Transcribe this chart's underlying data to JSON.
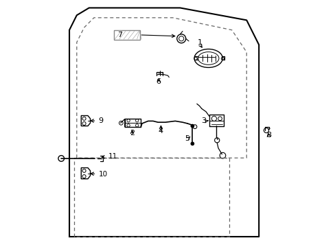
{
  "background_color": "#ffffff",
  "line_color": "#000000",
  "gray_color": "#888888",
  "dashed_color": "#666666",
  "figsize": [
    4.89,
    3.6
  ],
  "dpi": 100,
  "door_outline": {
    "x": [
      0.1,
      0.1,
      0.13,
      0.18,
      0.55,
      0.82,
      0.87,
      0.87,
      0.1
    ],
    "y": [
      0.04,
      0.88,
      0.94,
      0.97,
      0.97,
      0.92,
      0.82,
      0.04,
      0.04
    ]
  },
  "window_dashed": {
    "x": [
      0.13,
      0.13,
      0.16,
      0.2,
      0.52,
      0.76,
      0.82,
      0.82,
      0.13
    ],
    "y": [
      0.36,
      0.83,
      0.89,
      0.93,
      0.93,
      0.88,
      0.79,
      0.36,
      0.36
    ]
  },
  "lower_dashed": {
    "x": [
      0.12,
      0.12,
      0.75,
      0.75,
      0.12
    ],
    "y": [
      0.04,
      0.36,
      0.36,
      0.04,
      0.04
    ]
  }
}
